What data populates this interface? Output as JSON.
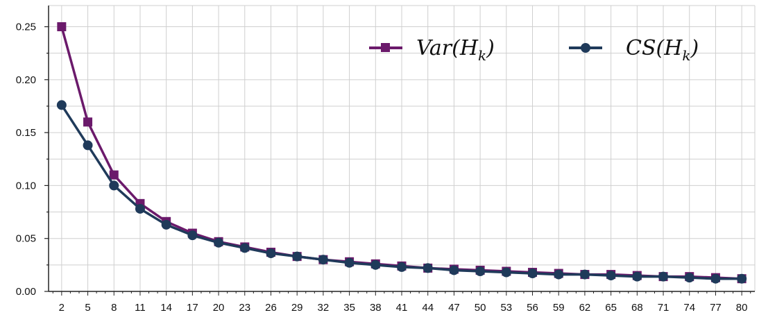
{
  "chart_data": {
    "type": "line",
    "title": "",
    "xlabel": "",
    "ylabel": "",
    "x": [
      2,
      5,
      8,
      11,
      14,
      17,
      20,
      23,
      26,
      29,
      32,
      35,
      38,
      41,
      44,
      47,
      50,
      53,
      56,
      59,
      62,
      65,
      68,
      71,
      74,
      77,
      80
    ],
    "xlim": [
      0.5,
      81.5
    ],
    "ylim": [
      0,
      0.27
    ],
    "yticks": [
      "0.00",
      "0.05",
      "0.10",
      "0.15",
      "0.20",
      "0.25"
    ],
    "ytick_values": [
      0,
      0.05,
      0.1,
      0.15,
      0.2,
      0.25
    ],
    "grid": true,
    "legend": "top-right",
    "series": [
      {
        "name": "Var(H_k)",
        "label_main": "Var(H",
        "label_sub": "k",
        "label_close": ")",
        "color": "#6b1a6b",
        "marker": "square",
        "values": [
          0.25,
          0.16,
          0.11,
          0.083,
          0.066,
          0.055,
          0.047,
          0.042,
          0.037,
          0.033,
          0.03,
          0.028,
          0.026,
          0.024,
          0.022,
          0.021,
          0.02,
          0.019,
          0.018,
          0.017,
          0.016,
          0.016,
          0.015,
          0.014,
          0.014,
          0.013,
          0.012
        ]
      },
      {
        "name": "CS(H_k)",
        "label_main": "CS(H",
        "label_sub": "k",
        "label_close": ")",
        "color": "#1f3a5a",
        "marker": "circle",
        "values": [
          0.176,
          0.138,
          0.1,
          0.078,
          0.063,
          0.053,
          0.046,
          0.041,
          0.036,
          0.033,
          0.03,
          0.027,
          0.025,
          0.023,
          0.022,
          0.02,
          0.019,
          0.018,
          0.017,
          0.016,
          0.016,
          0.015,
          0.014,
          0.014,
          0.013,
          0.012,
          0.012
        ]
      }
    ]
  }
}
